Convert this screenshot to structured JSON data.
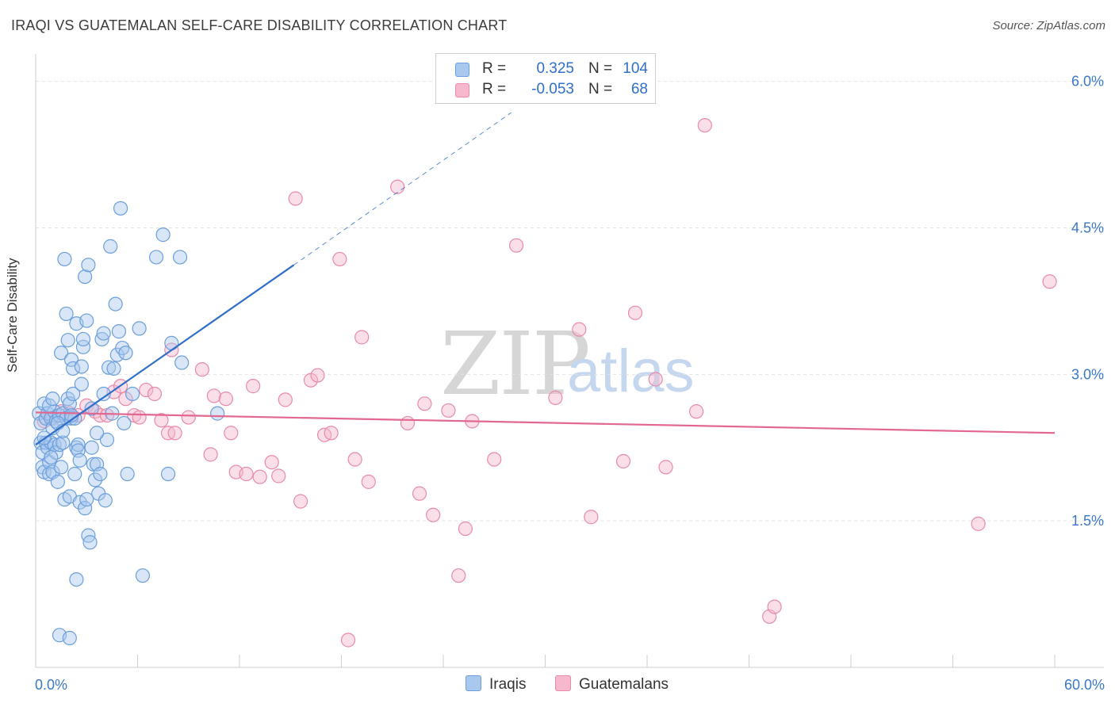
{
  "title": "IRAQI VS GUATEMALAN SELF-CARE DISABILITY CORRELATION CHART",
  "source_label": "Source: ZipAtlas.com",
  "watermark": {
    "zip": "ZIP",
    "atlas": "atlas"
  },
  "legend": {
    "r_label": "R =",
    "n_label": "N =",
    "iraqis": {
      "r": "0.325",
      "n": "104"
    },
    "guatemalans": {
      "r": "-0.053",
      "n": "68"
    }
  },
  "colors": {
    "iraqis_fill": "#a8c8ee",
    "iraqis_stroke": "#6b9fdc",
    "iraqis_line": "#2f6fc9",
    "guatemalans_fill": "#f5b8cc",
    "guatemalans_stroke": "#e98aab",
    "guatemalans_line": "#e2688f",
    "tick_text": "#3a78c8",
    "grid": "#e2e2e2"
  },
  "chart_data": {
    "type": "scatter",
    "title": "IRAQI VS GUATEMALAN SELF-CARE DISABILITY CORRELATION CHART",
    "xlabel": "",
    "ylabel": "Self-Care Disability",
    "xlim": [
      0,
      60
    ],
    "ylim": [
      0,
      6.2
    ],
    "x_tick_labels": [
      "0.0%",
      "60.0%"
    ],
    "y_ticks": [
      1.5,
      3.0,
      4.5,
      6.0
    ],
    "y_tick_labels": [
      "1.5%",
      "3.0%",
      "4.5%",
      "6.0%"
    ],
    "grid": true,
    "legend_position": "bottom-center",
    "series": [
      {
        "name": "Iraqis",
        "r": 0.325,
        "n": 104,
        "trend": {
          "x0": 0,
          "y0": 2.28,
          "x1": 15.2,
          "y1": 4.12,
          "dashed_to_x": 28,
          "dashed_to_y": 5.68
        },
        "points": [
          [
            0.2,
            2.6
          ],
          [
            0.3,
            2.5
          ],
          [
            0.3,
            2.3
          ],
          [
            0.4,
            2.2
          ],
          [
            0.4,
            2.05
          ],
          [
            0.5,
            2.7
          ],
          [
            0.5,
            2.0
          ],
          [
            0.6,
            2.55
          ],
          [
            0.6,
            2.3
          ],
          [
            0.7,
            2.6
          ],
          [
            0.7,
            2.25
          ],
          [
            0.8,
            2.1
          ],
          [
            0.8,
            1.98
          ],
          [
            0.9,
            2.55
          ],
          [
            0.9,
            2.3
          ],
          [
            1.0,
            2.45
          ],
          [
            1.0,
            2.0
          ],
          [
            1.1,
            2.62
          ],
          [
            1.1,
            2.28
          ],
          [
            1.2,
            2.52
          ],
          [
            1.2,
            2.2
          ],
          [
            1.3,
            1.9
          ],
          [
            1.4,
            2.58
          ],
          [
            1.4,
            2.28
          ],
          [
            1.5,
            3.22
          ],
          [
            1.5,
            2.05
          ],
          [
            1.6,
            2.6
          ],
          [
            1.6,
            2.3
          ],
          [
            1.7,
            1.72
          ],
          [
            1.7,
            4.18
          ],
          [
            1.8,
            3.62
          ],
          [
            1.8,
            2.55
          ],
          [
            1.9,
            3.35
          ],
          [
            1.9,
            2.75
          ],
          [
            2.0,
            2.7
          ],
          [
            2.0,
            1.75
          ],
          [
            2.1,
            3.15
          ],
          [
            2.1,
            2.55
          ],
          [
            2.2,
            3.06
          ],
          [
            2.2,
            2.8
          ],
          [
            2.3,
            2.55
          ],
          [
            2.3,
            1.98
          ],
          [
            2.4,
            2.25
          ],
          [
            2.4,
            3.52
          ],
          [
            2.5,
            2.28
          ],
          [
            2.5,
            2.22
          ],
          [
            2.6,
            2.12
          ],
          [
            2.6,
            1.69
          ],
          [
            2.7,
            2.9
          ],
          [
            2.7,
            3.08
          ],
          [
            2.8,
            3.28
          ],
          [
            2.8,
            3.36
          ],
          [
            2.9,
            1.63
          ],
          [
            2.9,
            4.0
          ],
          [
            3.0,
            1.72
          ],
          [
            3.0,
            3.55
          ],
          [
            3.1,
            4.12
          ],
          [
            3.1,
            1.35
          ],
          [
            3.2,
            1.28
          ],
          [
            3.3,
            2.65
          ],
          [
            3.3,
            2.25
          ],
          [
            3.4,
            2.08
          ],
          [
            3.5,
            1.92
          ],
          [
            3.6,
            2.08
          ],
          [
            3.7,
            1.78
          ],
          [
            3.8,
            1.98
          ],
          [
            3.9,
            3.36
          ],
          [
            4.0,
            3.42
          ],
          [
            4.0,
            2.8
          ],
          [
            4.1,
            1.71
          ],
          [
            4.2,
            2.33
          ],
          [
            4.3,
            3.07
          ],
          [
            4.4,
            4.31
          ],
          [
            4.5,
            2.6
          ],
          [
            4.6,
            3.06
          ],
          [
            4.7,
            3.72
          ],
          [
            4.8,
            3.2
          ],
          [
            4.9,
            3.44
          ],
          [
            5.0,
            4.7
          ],
          [
            5.1,
            3.27
          ],
          [
            5.2,
            2.5
          ],
          [
            5.3,
            3.22
          ],
          [
            5.4,
            1.98
          ],
          [
            5.7,
            2.8
          ],
          [
            6.1,
            3.47
          ],
          [
            6.3,
            0.94
          ],
          [
            7.1,
            4.2
          ],
          [
            7.5,
            4.43
          ],
          [
            7.8,
            1.98
          ],
          [
            8.0,
            3.32
          ],
          [
            8.5,
            4.2
          ],
          [
            8.6,
            3.12
          ],
          [
            10.7,
            2.6
          ],
          [
            1.4,
            0.33
          ],
          [
            2.0,
            0.3
          ],
          [
            2.4,
            0.9
          ],
          [
            0.8,
            2.68
          ],
          [
            1.3,
            2.5
          ],
          [
            0.5,
            2.35
          ],
          [
            1.0,
            2.75
          ],
          [
            2.1,
            2.58
          ],
          [
            1.6,
            2.42
          ],
          [
            0.9,
            2.15
          ],
          [
            3.6,
            2.4
          ]
        ]
      },
      {
        "name": "Guatemalans",
        "r": -0.053,
        "n": 68,
        "trend": {
          "x0": 0,
          "y0": 2.61,
          "x1": 60,
          "y1": 2.4
        },
        "points": [
          [
            0.5,
            2.52
          ],
          [
            1.0,
            2.55
          ],
          [
            1.5,
            2.62
          ],
          [
            2.0,
            2.6
          ],
          [
            2.5,
            2.58
          ],
          [
            3.0,
            2.68
          ],
          [
            3.5,
            2.62
          ],
          [
            3.8,
            2.58
          ],
          [
            4.2,
            2.58
          ],
          [
            4.6,
            2.82
          ],
          [
            5.0,
            2.88
          ],
          [
            5.3,
            2.75
          ],
          [
            5.8,
            2.58
          ],
          [
            6.1,
            2.56
          ],
          [
            6.5,
            2.84
          ],
          [
            7.0,
            2.8
          ],
          [
            7.4,
            2.53
          ],
          [
            7.8,
            2.4
          ],
          [
            8.0,
            3.25
          ],
          [
            8.2,
            2.4
          ],
          [
            9.0,
            2.56
          ],
          [
            9.8,
            3.05
          ],
          [
            10.3,
            2.18
          ],
          [
            10.5,
            2.78
          ],
          [
            11.2,
            2.75
          ],
          [
            11.5,
            2.4
          ],
          [
            11.8,
            2.0
          ],
          [
            12.4,
            1.98
          ],
          [
            12.8,
            2.88
          ],
          [
            13.2,
            1.95
          ],
          [
            13.9,
            2.1
          ],
          [
            14.3,
            1.96
          ],
          [
            14.7,
            2.74
          ],
          [
            15.3,
            4.8
          ],
          [
            15.6,
            1.7
          ],
          [
            16.2,
            2.94
          ],
          [
            16.6,
            2.99
          ],
          [
            17.0,
            2.38
          ],
          [
            17.4,
            2.4
          ],
          [
            17.9,
            4.18
          ],
          [
            18.4,
            0.28
          ],
          [
            18.8,
            2.13
          ],
          [
            19.2,
            3.38
          ],
          [
            19.6,
            1.9
          ],
          [
            21.3,
            4.92
          ],
          [
            21.9,
            2.5
          ],
          [
            22.6,
            1.78
          ],
          [
            22.9,
            2.7
          ],
          [
            23.4,
            1.56
          ],
          [
            24.3,
            2.63
          ],
          [
            24.9,
            0.94
          ],
          [
            25.3,
            1.42
          ],
          [
            25.7,
            2.52
          ],
          [
            27.0,
            2.13
          ],
          [
            28.3,
            4.32
          ],
          [
            30.6,
            2.76
          ],
          [
            32.0,
            3.46
          ],
          [
            32.7,
            1.54
          ],
          [
            34.6,
            2.11
          ],
          [
            35.3,
            3.63
          ],
          [
            36.5,
            2.95
          ],
          [
            37.1,
            2.05
          ],
          [
            38.9,
            2.62
          ],
          [
            39.4,
            5.55
          ],
          [
            43.2,
            0.52
          ],
          [
            43.5,
            0.62
          ],
          [
            55.5,
            1.47
          ],
          [
            59.7,
            3.95
          ]
        ]
      }
    ]
  }
}
